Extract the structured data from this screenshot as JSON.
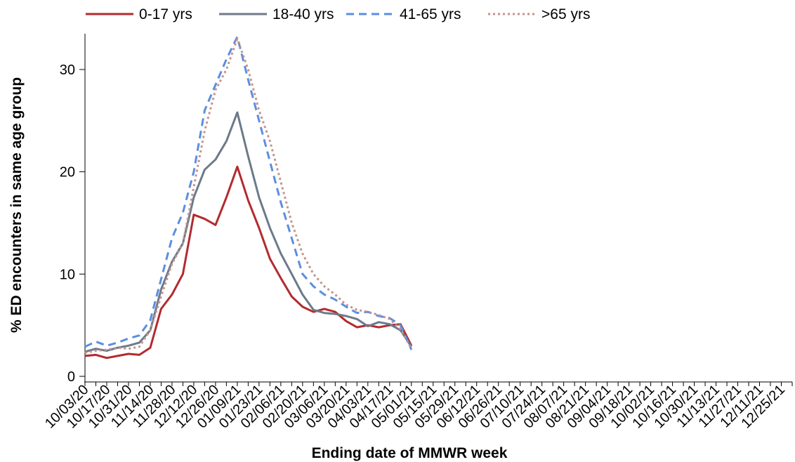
{
  "chart_data": {
    "type": "line",
    "xlabel": "Ending date of MMWR week",
    "ylabel": "% ED encounters in same age group",
    "ylim": [
      0,
      33.5
    ],
    "yticks": [
      0,
      10,
      20,
      30
    ],
    "grid": false,
    "legend_position": "top",
    "x_tick_labels": [
      "10/03/20",
      "10/17/20",
      "10/31/20",
      "11/14/20",
      "11/28/20",
      "12/12/20",
      "12/26/20",
      "01/09/21",
      "01/23/21",
      "02/06/21",
      "02/20/21",
      "03/06/21",
      "03/20/21",
      "04/03/21",
      "04/17/21",
      "05/01/21",
      "05/15/21",
      "05/29/21",
      "06/12/21",
      "06/26/21",
      "07/10/21",
      "07/24/21",
      "08/07/21",
      "08/21/21",
      "09/04/21",
      "09/18/21",
      "10/02/21",
      "10/16/21",
      "10/30/21",
      "11/13/21",
      "11/27/21",
      "12/11/21",
      "12/25/21"
    ],
    "x_range_weeks": [
      0,
      65
    ],
    "series": [
      {
        "name": "0-17 yrs",
        "color": "#b22b2e",
        "dash": "solid",
        "values": [
          2.0,
          2.1,
          1.8,
          2.0,
          2.2,
          2.1,
          2.8,
          6.6,
          8.0,
          10.0,
          15.8,
          15.4,
          14.8,
          17.5,
          20.5,
          17.2,
          14.5,
          11.5,
          9.6,
          7.8,
          6.8,
          6.3,
          6.6,
          6.3,
          5.4,
          4.8,
          5.0,
          4.8,
          5.0,
          5.1,
          3.0
        ]
      },
      {
        "name": "18-40 yrs",
        "color": "#6c7a89",
        "dash": "solid",
        "values": [
          2.4,
          2.7,
          2.5,
          2.8,
          3.0,
          3.3,
          4.5,
          8.5,
          11.2,
          13.0,
          17.5,
          20.2,
          21.2,
          23.0,
          25.8,
          21.5,
          17.5,
          14.5,
          12.0,
          10.0,
          8.0,
          6.5,
          6.2,
          6.1,
          5.9,
          5.6,
          4.9,
          5.3,
          5.1,
          4.5,
          2.9
        ]
      },
      {
        "name": "41-65 yrs",
        "color": "#5b8ee0",
        "dash": "dashed",
        "values": [
          2.9,
          3.4,
          3.0,
          3.3,
          3.7,
          4.0,
          5.5,
          9.5,
          13.5,
          16.0,
          20.0,
          26.0,
          28.5,
          31.0,
          33.2,
          29.0,
          25.0,
          21.0,
          17.0,
          13.5,
          10.0,
          8.8,
          8.0,
          7.5,
          6.8,
          6.2,
          6.3,
          5.9,
          5.7,
          5.0,
          2.6
        ]
      },
      {
        "name": ">65 yrs",
        "color": "#c4928d",
        "dash": "dotted",
        "values": [
          2.3,
          2.5,
          2.6,
          2.8,
          2.7,
          2.9,
          4.5,
          7.8,
          11.0,
          13.0,
          18.5,
          24.0,
          28.0,
          30.0,
          33.0,
          30.0,
          26.0,
          23.0,
          19.0,
          15.0,
          12.0,
          10.0,
          8.8,
          8.0,
          7.0,
          6.5,
          6.3,
          6.0,
          5.6,
          4.6,
          2.7
        ]
      }
    ]
  }
}
